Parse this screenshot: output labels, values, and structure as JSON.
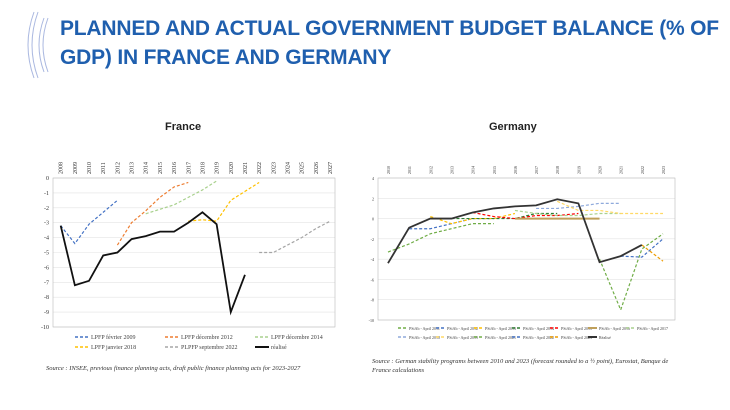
{
  "title": "PLANNED AND ACTUAL GOVERNMENT BUDGET BALANCE (% OF GDP) IN FRANCE AND GERMANY",
  "chart_data": [
    {
      "type": "line",
      "title": "France",
      "x": [
        2008,
        2009,
        2010,
        2011,
        2012,
        2013,
        2014,
        2015,
        2016,
        2017,
        2018,
        2019,
        2020,
        2021,
        2022,
        2023,
        2024,
        2025,
        2026,
        2027
      ],
      "ylim": [
        -10,
        0
      ],
      "yticks": [
        0,
        -1,
        -2,
        -3,
        -4,
        -5,
        -6,
        -7,
        -8,
        -9,
        -10
      ],
      "grid": true,
      "legend": "bottom",
      "series": [
        {
          "name": "LPFP février 2009",
          "color": "#4472c4",
          "dash": true,
          "points": [
            [
              2008,
              -3.2
            ],
            [
              2009,
              -4.4
            ],
            [
              2010,
              -3.1
            ],
            [
              2011,
              -2.3
            ],
            [
              2012,
              -1.5
            ]
          ]
        },
        {
          "name": "LPFP décembre 2012",
          "color": "#ed7d31",
          "dash": true,
          "points": [
            [
              2012,
              -4.5
            ],
            [
              2013,
              -3.0
            ],
            [
              2014,
              -2.2
            ],
            [
              2015,
              -1.3
            ],
            [
              2016,
              -0.6
            ],
            [
              2017,
              -0.3
            ]
          ]
        },
        {
          "name": "LPFP décembre 2014",
          "color": "#a9d18e",
          "dash": true,
          "points": [
            [
              2014,
              -2.4
            ],
            [
              2015,
              -2.1
            ],
            [
              2016,
              -1.8
            ],
            [
              2017,
              -1.3
            ],
            [
              2018,
              -0.8
            ],
            [
              2019,
              -0.2
            ]
          ]
        },
        {
          "name": "LPFP janvier 2018",
          "color": "#ffc000",
          "dash": true,
          "points": [
            [
              2017,
              -2.9
            ],
            [
              2018,
              -2.8
            ],
            [
              2019,
              -2.9
            ],
            [
              2020,
              -1.5
            ],
            [
              2021,
              -0.9
            ],
            [
              2022,
              -0.3
            ]
          ]
        },
        {
          "name": "PLPFP septembre 2022",
          "color": "#a5a5a5",
          "dash": true,
          "points": [
            [
              2022,
              -5.0
            ],
            [
              2023,
              -5.0
            ],
            [
              2024,
              -4.5
            ],
            [
              2025,
              -4.0
            ],
            [
              2026,
              -3.4
            ],
            [
              2027,
              -2.9
            ]
          ]
        },
        {
          "name": "réalisé",
          "color": "#111111",
          "dash": false,
          "points": [
            [
              2008,
              -3.2
            ],
            [
              2009,
              -7.2
            ],
            [
              2010,
              -6.9
            ],
            [
              2011,
              -5.2
            ],
            [
              2012,
              -5.0
            ],
            [
              2013,
              -4.1
            ],
            [
              2014,
              -3.9
            ],
            [
              2015,
              -3.6
            ],
            [
              2016,
              -3.6
            ],
            [
              2017,
              -3.0
            ],
            [
              2018,
              -2.3
            ],
            [
              2019,
              -3.1
            ],
            [
              2020,
              -9.0
            ],
            [
              2021,
              -6.5
            ]
          ]
        }
      ]
    },
    {
      "type": "line",
      "title": "Germany",
      "x": [
        2010,
        2011,
        2012,
        2013,
        2014,
        2015,
        2016,
        2017,
        2018,
        2019,
        2020,
        2021,
        2022,
        2023
      ],
      "ylim": [
        -10,
        4
      ],
      "yticks": [
        4,
        2,
        0,
        -2,
        -4,
        -6,
        -8,
        -10
      ],
      "grid": true,
      "legend": "bottom",
      "series": [
        {
          "name": "PStAb - April 2011",
          "color": "#70ad47",
          "dash": true,
          "points": [
            [
              2010,
              -3.3
            ],
            [
              2011,
              -2.5
            ],
            [
              2012,
              -1.5
            ],
            [
              2013,
              -1.0
            ],
            [
              2014,
              -0.5
            ],
            [
              2015,
              -0.5
            ]
          ]
        },
        {
          "name": "PStAb - April 2012",
          "color": "#4472c4",
          "dash": true,
          "points": [
            [
              2011,
              -1.0
            ],
            [
              2012,
              -1.0
            ],
            [
              2013,
              -0.5
            ],
            [
              2014,
              0
            ],
            [
              2015,
              0
            ]
          ]
        },
        {
          "name": "PStAb - April 2013",
          "color": "#ffc000",
          "dash": true,
          "points": [
            [
              2012,
              0.2
            ],
            [
              2013,
              -0.5
            ],
            [
              2014,
              0
            ],
            [
              2015,
              0
            ],
            [
              2016,
              0.5
            ]
          ]
        },
        {
          "name": "PStAb - April 2014",
          "color": "#2e7d32",
          "dash": true,
          "points": [
            [
              2013,
              0
            ],
            [
              2014,
              0
            ],
            [
              2015,
              0
            ],
            [
              2016,
              0
            ],
            [
              2017,
              0.5
            ],
            [
              2018,
              0.5
            ]
          ]
        },
        {
          "name": "PStAb - April 2015",
          "color": "#ff0000",
          "dash": true,
          "points": [
            [
              2014,
              0.6
            ],
            [
              2015,
              0.2
            ],
            [
              2016,
              0
            ],
            [
              2017,
              0.3
            ],
            [
              2018,
              0.3
            ],
            [
              2019,
              0.5
            ]
          ]
        },
        {
          "name": "PStAb - April 2016",
          "color": "#bf9f5a",
          "dash": false,
          "points": [
            [
              2016,
              0
            ],
            [
              2017,
              0
            ],
            [
              2018,
              0
            ],
            [
              2019,
              0
            ],
            [
              2020,
              0
            ]
          ]
        },
        {
          "name": "PStAb - April 2017",
          "color": "#a9d18e",
          "dash": true,
          "points": [
            [
              2016,
              0.8
            ],
            [
              2017,
              0.5
            ],
            [
              2018,
              0.3
            ],
            [
              2019,
              0.3
            ],
            [
              2020,
              0.5
            ],
            [
              2021,
              0.5
            ]
          ]
        },
        {
          "name": "PStAb - April 2018",
          "color": "#8faadc",
          "dash": true,
          "points": [
            [
              2017,
              1.0
            ],
            [
              2018,
              1.0
            ],
            [
              2019,
              1.2
            ],
            [
              2020,
              1.5
            ],
            [
              2021,
              1.5
            ]
          ]
        },
        {
          "name": "PStAb - April 2019",
          "color": "#ffd966",
          "dash": true,
          "points": [
            [
              2018,
              1.7
            ],
            [
              2019,
              0.8
            ],
            [
              2020,
              0.8
            ],
            [
              2021,
              0.5
            ],
            [
              2022,
              0.5
            ],
            [
              2023,
              0.5
            ]
          ]
        },
        {
          "name": "PStAb - April 2021",
          "color": "#70ad47",
          "dash": true,
          "points": [
            [
              2020,
              -4.0
            ],
            [
              2021,
              -9.0
            ],
            [
              2022,
              -3.0
            ],
            [
              2023,
              -1.5
            ]
          ]
        },
        {
          "name": "PStAb - April 2022",
          "color": "#4472c4",
          "dash": true,
          "points": [
            [
              2021,
              -3.7
            ],
            [
              2022,
              -3.8
            ],
            [
              2023,
              -2.0
            ]
          ]
        },
        {
          "name": "PStAb - April 2023",
          "color": "#ed9c00",
          "dash": true,
          "points": [
            [
              2022,
              -2.6
            ],
            [
              2023,
              -4.2
            ]
          ]
        },
        {
          "name": "Réalisé",
          "color": "#333333",
          "dash": false,
          "points": [
            [
              2010,
              -4.4
            ],
            [
              2011,
              -0.9
            ],
            [
              2012,
              0
            ],
            [
              2013,
              0
            ],
            [
              2014,
              0.6
            ],
            [
              2015,
              1.0
            ],
            [
              2016,
              1.2
            ],
            [
              2017,
              1.3
            ],
            [
              2018,
              1.9
            ],
            [
              2019,
              1.5
            ],
            [
              2020,
              -4.3
            ],
            [
              2021,
              -3.7
            ],
            [
              2022,
              -2.6
            ]
          ]
        }
      ]
    }
  ],
  "sources": {
    "france": "Source : INSEE, previous finance planning acts, draft public finance planning acts for 2023-2027",
    "germany": "Source : German stability programs between 2010 and 2023 (forecast rounded to a ½ point), Eurostat, Banque de France calculations"
  }
}
